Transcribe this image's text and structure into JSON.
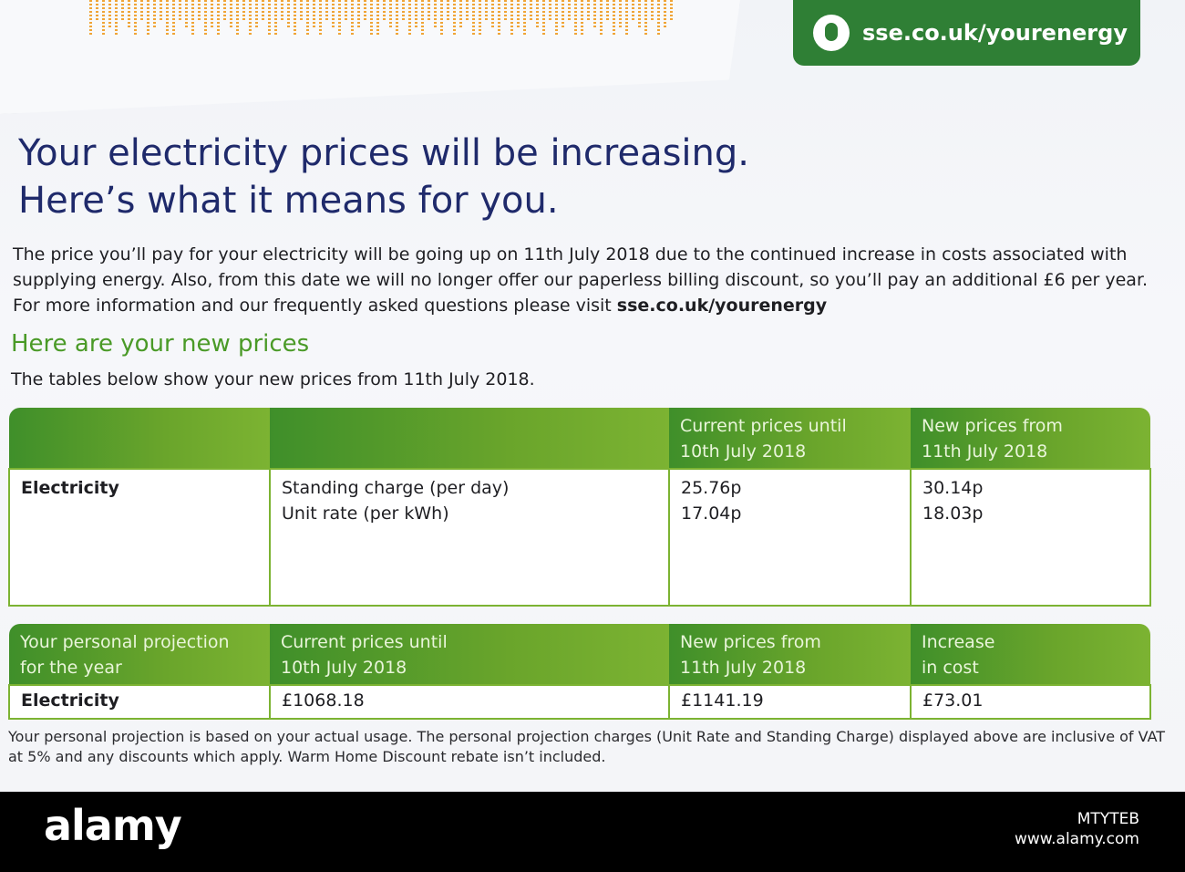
{
  "badge": {
    "url": "sse.co.uk/yourenergy",
    "icon": "mouse-icon"
  },
  "headline": {
    "line1": "Your electricity prices will be increasing.",
    "line2": "Here’s what it means for you."
  },
  "intro": {
    "text": "The price you’ll pay for your electricity will be going up on 11th July 2018 due to the continued increase in costs associated with supplying energy. Also, from this date we will no longer offer our paperless billing discount, so you’ll pay an additional £6 per year. For more information and our frequently asked questions please visit",
    "link": "sse.co.uk/yourenergy"
  },
  "section": {
    "heading": "Here are your new prices",
    "note": "The tables below show your new prices from 11th July 2018."
  },
  "prices_table": {
    "headers": [
      "",
      "",
      "Current prices until\n10th July 2018",
      "New prices from\n11th July 2018"
    ],
    "row": {
      "label": "Electricity",
      "items": [
        "Standing charge (per day)",
        "Unit rate (per kWh)"
      ],
      "current": [
        "25.76p",
        "17.04p"
      ],
      "new": [
        "30.14p",
        "18.03p"
      ]
    }
  },
  "projection_table": {
    "headers": [
      "Your personal projection\nfor the year",
      "Current prices until\n10th July 2018",
      "New prices from\n11th July 2018",
      "Increase\nin cost"
    ],
    "row": {
      "label": "Electricity",
      "current": "£1068.18",
      "new": "£1141.19",
      "increase": "£73.01"
    }
  },
  "footnote": "Your personal projection is based on your actual usage. The personal projection charges (Unit Rate and Standing Charge) displayed above are inclusive of VAT at 5% and any discounts which apply. Warm Home Discount rebate isn’t included.",
  "footer": {
    "logo": "alamy",
    "image_id": "MTYTEB",
    "site": "www.alamy.com"
  },
  "colors": {
    "brand_green": "#2f7f35",
    "table_green": "#7cb332",
    "headline_blue": "#1f2a6b",
    "subheading_green": "#4a9a27"
  }
}
